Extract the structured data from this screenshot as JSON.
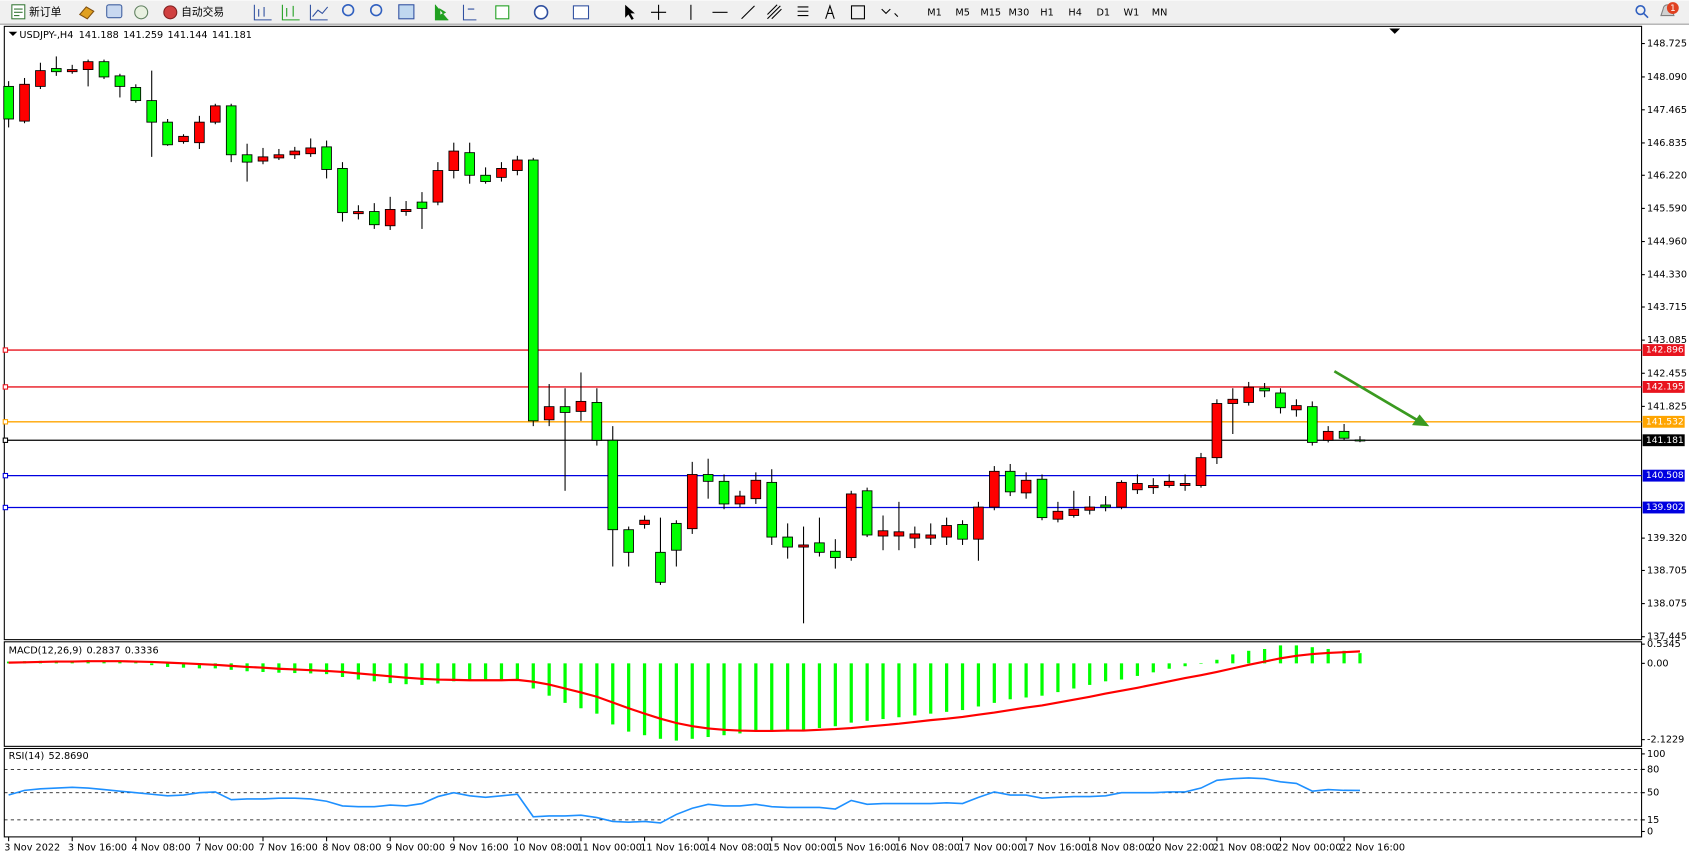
{
  "toolbar": {
    "new_order": "新订单",
    "auto_trading": "自动交易",
    "timeframes": [
      "M1",
      "M5",
      "M15",
      "M30",
      "H1",
      "H4",
      "D1",
      "W1",
      "MN"
    ],
    "notifications": "1"
  },
  "chart_data": [
    {
      "type": "candlestick",
      "title": "USDJPY-,H4",
      "up_color": "#ff0000",
      "down_color": "#00ff00",
      "ylim": [
        137.41,
        148.97
      ],
      "yticks": [
        148.725,
        {
          "value": 148.09,
          "label": "148.090"
        },
        147.465,
        146.835,
        {
          "value": 146.22,
          "label": "146.220"
        },
        {
          "value": 145.59,
          "label": "145.590"
        },
        {
          "value": 144.96,
          "label": "144.960"
        },
        {
          "value": 144.33,
          "label": "144.330"
        },
        143.715,
        143.085,
        142.455,
        141.825,
        {
          "value": 139.32,
          "label": "139.320"
        },
        138.705,
        138.075,
        137.445
      ],
      "levels": [
        {
          "value": 142.896,
          "color": "#e8141e"
        },
        {
          "value": 142.195,
          "color": "#e8141e"
        },
        {
          "value": 141.532,
          "color": "#ffa500"
        },
        {
          "value": 141.181,
          "color": "#000000"
        },
        {
          "value": 140.508,
          "color": "#0000e0"
        },
        {
          "value": 139.902,
          "color": "#0000e0"
        }
      ],
      "categories": [
        "3 Nov 2022",
        null,
        null,
        null,
        "3 Nov 16:00",
        null,
        null,
        null,
        "4 Nov 08:00",
        null,
        null,
        null,
        "7 Nov 00:00",
        null,
        null,
        null,
        "7 Nov 16:00",
        null,
        null,
        null,
        "8 Nov 08:00",
        null,
        null,
        null,
        "9 Nov 00:00",
        null,
        null,
        null,
        "9 Nov 16:00",
        null,
        null,
        null,
        "10 Nov 08:00",
        null,
        null,
        null,
        "11 Nov 00:00",
        null,
        null,
        null,
        "11 Nov 16:00",
        null,
        null,
        null,
        "14 Nov 08:00",
        null,
        null,
        null,
        "15 Nov 00:00",
        null,
        null,
        null,
        "15 Nov 16:00",
        null,
        null,
        null,
        "16 Nov 08:00",
        null,
        null,
        null,
        "17 Nov 00:00",
        null,
        null,
        null,
        "17 Nov 16:00",
        null,
        null,
        null,
        "18 Nov 08:00",
        null,
        null,
        null,
        "20 Nov 22:00",
        null,
        null,
        null,
        "21 Nov 08:00",
        null,
        null,
        null,
        "22 Nov 00:00",
        null,
        null,
        null,
        "22 Nov 16:00",
        null
      ],
      "ohlc": [
        [
          147.91,
          148.01,
          147.13,
          147.29
        ],
        [
          147.25,
          148.07,
          147.21,
          147.95
        ],
        [
          147.91,
          148.36,
          147.86,
          148.21
        ],
        [
          148.25,
          148.48,
          148.11,
          148.19
        ],
        [
          148.19,
          148.32,
          148.15,
          148.23
        ],
        [
          148.23,
          148.42,
          147.91,
          148.38
        ],
        [
          148.38,
          148.42,
          148.05,
          148.09
        ],
        [
          148.11,
          148.15,
          147.7,
          147.91
        ],
        [
          147.89,
          147.95,
          147.6,
          147.64
        ],
        [
          147.64,
          148.21,
          146.57,
          147.23
        ],
        [
          147.23,
          147.29,
          146.78,
          146.8
        ],
        [
          146.86,
          147.0,
          146.82,
          146.96
        ],
        [
          146.84,
          147.35,
          146.72,
          147.23
        ],
        [
          147.23,
          147.58,
          147.19,
          147.54
        ],
        [
          147.54,
          147.58,
          146.47,
          146.61
        ],
        [
          146.61,
          146.82,
          146.1,
          146.47
        ],
        [
          146.49,
          146.74,
          146.43,
          146.57
        ],
        [
          146.55,
          146.72,
          146.51,
          146.61
        ],
        [
          146.61,
          146.76,
          146.53,
          146.68
        ],
        [
          146.63,
          146.92,
          146.57,
          146.74
        ],
        [
          146.76,
          146.88,
          146.16,
          146.33
        ],
        [
          146.35,
          146.47,
          145.34,
          145.51
        ],
        [
          145.49,
          145.65,
          145.38,
          145.53
        ],
        [
          145.53,
          145.69,
          145.2,
          145.28
        ],
        [
          145.26,
          145.81,
          145.18,
          145.57
        ],
        [
          145.53,
          145.73,
          145.45,
          145.57
        ],
        [
          145.71,
          145.9,
          145.2,
          145.59
        ],
        [
          145.71,
          146.47,
          145.65,
          146.31
        ],
        [
          146.31,
          146.84,
          146.16,
          146.68
        ],
        [
          146.65,
          146.84,
          146.06,
          146.22
        ],
        [
          146.22,
          146.37,
          146.06,
          146.1
        ],
        [
          146.18,
          146.47,
          146.1,
          146.35
        ],
        [
          146.31,
          146.59,
          146.22,
          146.51
        ],
        [
          146.51,
          146.55,
          141.45,
          141.55
        ],
        [
          141.57,
          142.25,
          141.45,
          141.82
        ],
        [
          141.82,
          142.17,
          140.22,
          141.71
        ],
        [
          141.73,
          142.47,
          141.55,
          141.92
        ],
        [
          141.9,
          142.17,
          141.08,
          141.18
        ],
        [
          141.18,
          141.45,
          138.78,
          139.48
        ],
        [
          139.48,
          139.54,
          138.78,
          139.05
        ],
        [
          139.58,
          139.75,
          139.5,
          139.66
        ],
        [
          139.05,
          139.71,
          138.43,
          138.48
        ],
        [
          139.6,
          139.66,
          138.78,
          139.09
        ],
        [
          139.5,
          140.77,
          139.4,
          140.53
        ],
        [
          140.53,
          140.83,
          140.07,
          140.4
        ],
        [
          140.4,
          140.53,
          139.87,
          139.97
        ],
        [
          139.97,
          140.22,
          139.91,
          140.12
        ],
        [
          140.07,
          140.57,
          139.97,
          140.42
        ],
        [
          140.38,
          140.63,
          139.19,
          139.34
        ],
        [
          139.34,
          139.6,
          138.93,
          139.15
        ],
        [
          139.15,
          139.54,
          137.7,
          139.19
        ],
        [
          139.23,
          139.71,
          138.97,
          139.05
        ],
        [
          139.07,
          139.3,
          138.74,
          138.95
        ],
        [
          138.95,
          140.22,
          138.89,
          140.16
        ],
        [
          140.22,
          140.28,
          139.34,
          139.38
        ],
        [
          139.36,
          139.75,
          139.09,
          139.46
        ],
        [
          139.36,
          140.01,
          139.09,
          139.44
        ],
        [
          139.32,
          139.54,
          139.13,
          139.4
        ],
        [
          139.32,
          139.6,
          139.19,
          139.38
        ],
        [
          139.34,
          139.71,
          139.19,
          139.56
        ],
        [
          139.58,
          139.66,
          139.19,
          139.3
        ],
        [
          139.3,
          140.01,
          138.89,
          139.91
        ],
        [
          139.91,
          140.69,
          139.85,
          140.59
        ],
        [
          140.59,
          140.73,
          140.12,
          140.2
        ],
        [
          140.18,
          140.57,
          140.07,
          140.42
        ],
        [
          140.44,
          140.53,
          139.66,
          139.71
        ],
        [
          139.68,
          140.01,
          139.62,
          139.83
        ],
        [
          139.75,
          140.22,
          139.71,
          139.87
        ],
        [
          139.85,
          140.12,
          139.77,
          139.91
        ],
        [
          139.95,
          140.12,
          139.83,
          139.91
        ],
        [
          139.91,
          140.42,
          139.87,
          140.38
        ],
        [
          140.24,
          140.53,
          140.16,
          140.36
        ],
        [
          140.28,
          140.46,
          140.16,
          140.32
        ],
        [
          140.32,
          140.53,
          140.28,
          140.4
        ],
        [
          140.32,
          140.53,
          140.22,
          140.36
        ],
        [
          140.32,
          140.94,
          140.28,
          140.85
        ],
        [
          140.85,
          141.96,
          140.73,
          141.88
        ],
        [
          141.88,
          142.17,
          141.3,
          141.96
        ],
        [
          141.9,
          142.29,
          141.84,
          142.19
        ],
        [
          142.17,
          142.27,
          142.0,
          142.12
        ],
        [
          142.08,
          142.17,
          141.69,
          141.8
        ],
        [
          141.76,
          141.96,
          141.63,
          141.84
        ],
        [
          141.82,
          141.92,
          141.08,
          141.14
        ],
        [
          141.18,
          141.45,
          141.14,
          141.35
        ],
        [
          141.35,
          141.49,
          141.18,
          141.22
        ],
        [
          141.188,
          141.259,
          141.144,
          141.181
        ]
      ]
    },
    {
      "type": "macd",
      "title": "MACD(12,26,9)",
      "color": "#00ff00",
      "signal_color": "#ff0000",
      "ylim": [
        -2.28,
        0.54
      ],
      "yticks": [
        0.5345,
        {
          "value": 0,
          "label": "0.00"
        },
        -2.1229
      ],
      "values": [
        0.05,
        0.06,
        0.07,
        0.08,
        0.08,
        0.09,
        0.08,
        0.06,
        0.03,
        -0.05,
        -0.1,
        -0.12,
        -0.14,
        -0.14,
        -0.18,
        -0.22,
        -0.24,
        -0.26,
        -0.27,
        -0.28,
        -0.3,
        -0.38,
        -0.45,
        -0.5,
        -0.55,
        -0.58,
        -0.6,
        -0.56,
        -0.5,
        -0.48,
        -0.48,
        -0.46,
        -0.44,
        -0.7,
        -0.9,
        -1.1,
        -1.25,
        -1.4,
        -1.7,
        -1.9,
        -2.0,
        -2.1,
        -2.15,
        -2.1,
        -2.05,
        -2.0,
        -1.95,
        -1.9,
        -1.9,
        -1.85,
        -1.85,
        -1.8,
        -1.75,
        -1.65,
        -1.6,
        -1.55,
        -1.5,
        -1.45,
        -1.4,
        -1.35,
        -1.3,
        -1.2,
        -1.1,
        -1.0,
        -0.95,
        -0.9,
        -0.8,
        -0.7,
        -0.6,
        -0.5,
        -0.45,
        -0.35,
        -0.25,
        -0.15,
        -0.08,
        0.0,
        0.1,
        0.25,
        0.35,
        0.4,
        0.5,
        0.5,
        0.45,
        0.4,
        0.35,
        0.2837
      ],
      "signal": [
        0.02,
        0.03,
        0.04,
        0.05,
        0.05,
        0.06,
        0.06,
        0.06,
        0.05,
        0.04,
        0.02,
        0,
        -0.02,
        -0.04,
        -0.07,
        -0.1,
        -0.12,
        -0.15,
        -0.17,
        -0.19,
        -0.21,
        -0.24,
        -0.28,
        -0.32,
        -0.36,
        -0.4,
        -0.43,
        -0.45,
        -0.46,
        -0.47,
        -0.47,
        -0.47,
        -0.46,
        -0.51,
        -0.59,
        -0.7,
        -0.81,
        -0.93,
        -1.09,
        -1.25,
        -1.4,
        -1.54,
        -1.66,
        -1.75,
        -1.81,
        -1.85,
        -1.87,
        -1.88,
        -1.88,
        -1.87,
        -1.87,
        -1.85,
        -1.83,
        -1.8,
        -1.76,
        -1.72,
        -1.68,
        -1.63,
        -1.58,
        -1.54,
        -1.49,
        -1.43,
        -1.37,
        -1.3,
        -1.23,
        -1.17,
        -1.09,
        -1.01,
        -0.93,
        -0.84,
        -0.76,
        -0.68,
        -0.59,
        -0.5,
        -0.41,
        -0.33,
        -0.24,
        -0.14,
        -0.04,
        0.05,
        0.14,
        0.21,
        0.26,
        0.29,
        0.31,
        0.3336
      ]
    },
    {
      "type": "rsi",
      "title": "RSI(14)",
      "current_label": "52.8690",
      "color": "#1e90ff",
      "ylim": [
        0,
        100
      ],
      "yticks": [
        100,
        80,
        50,
        15,
        0
      ],
      "values": [
        47,
        53,
        55,
        56,
        57,
        56,
        54,
        52,
        50,
        48,
        46,
        47,
        50,
        51,
        41,
        42,
        42,
        43,
        43,
        42,
        39,
        33,
        32,
        32,
        34,
        33,
        36,
        45,
        50,
        46,
        44,
        46,
        48,
        19,
        20,
        20,
        21,
        18,
        13,
        12,
        13,
        11,
        22,
        30,
        35,
        33,
        33,
        35,
        32,
        31,
        31,
        31,
        29,
        40,
        35,
        36,
        36,
        36,
        36,
        37,
        36,
        44,
        51,
        47,
        47,
        43,
        44,
        45,
        45,
        46,
        50,
        50,
        50,
        51,
        51,
        56,
        66,
        68,
        69,
        68,
        64,
        62,
        52,
        54,
        53,
        52.869
      ]
    }
  ]
}
